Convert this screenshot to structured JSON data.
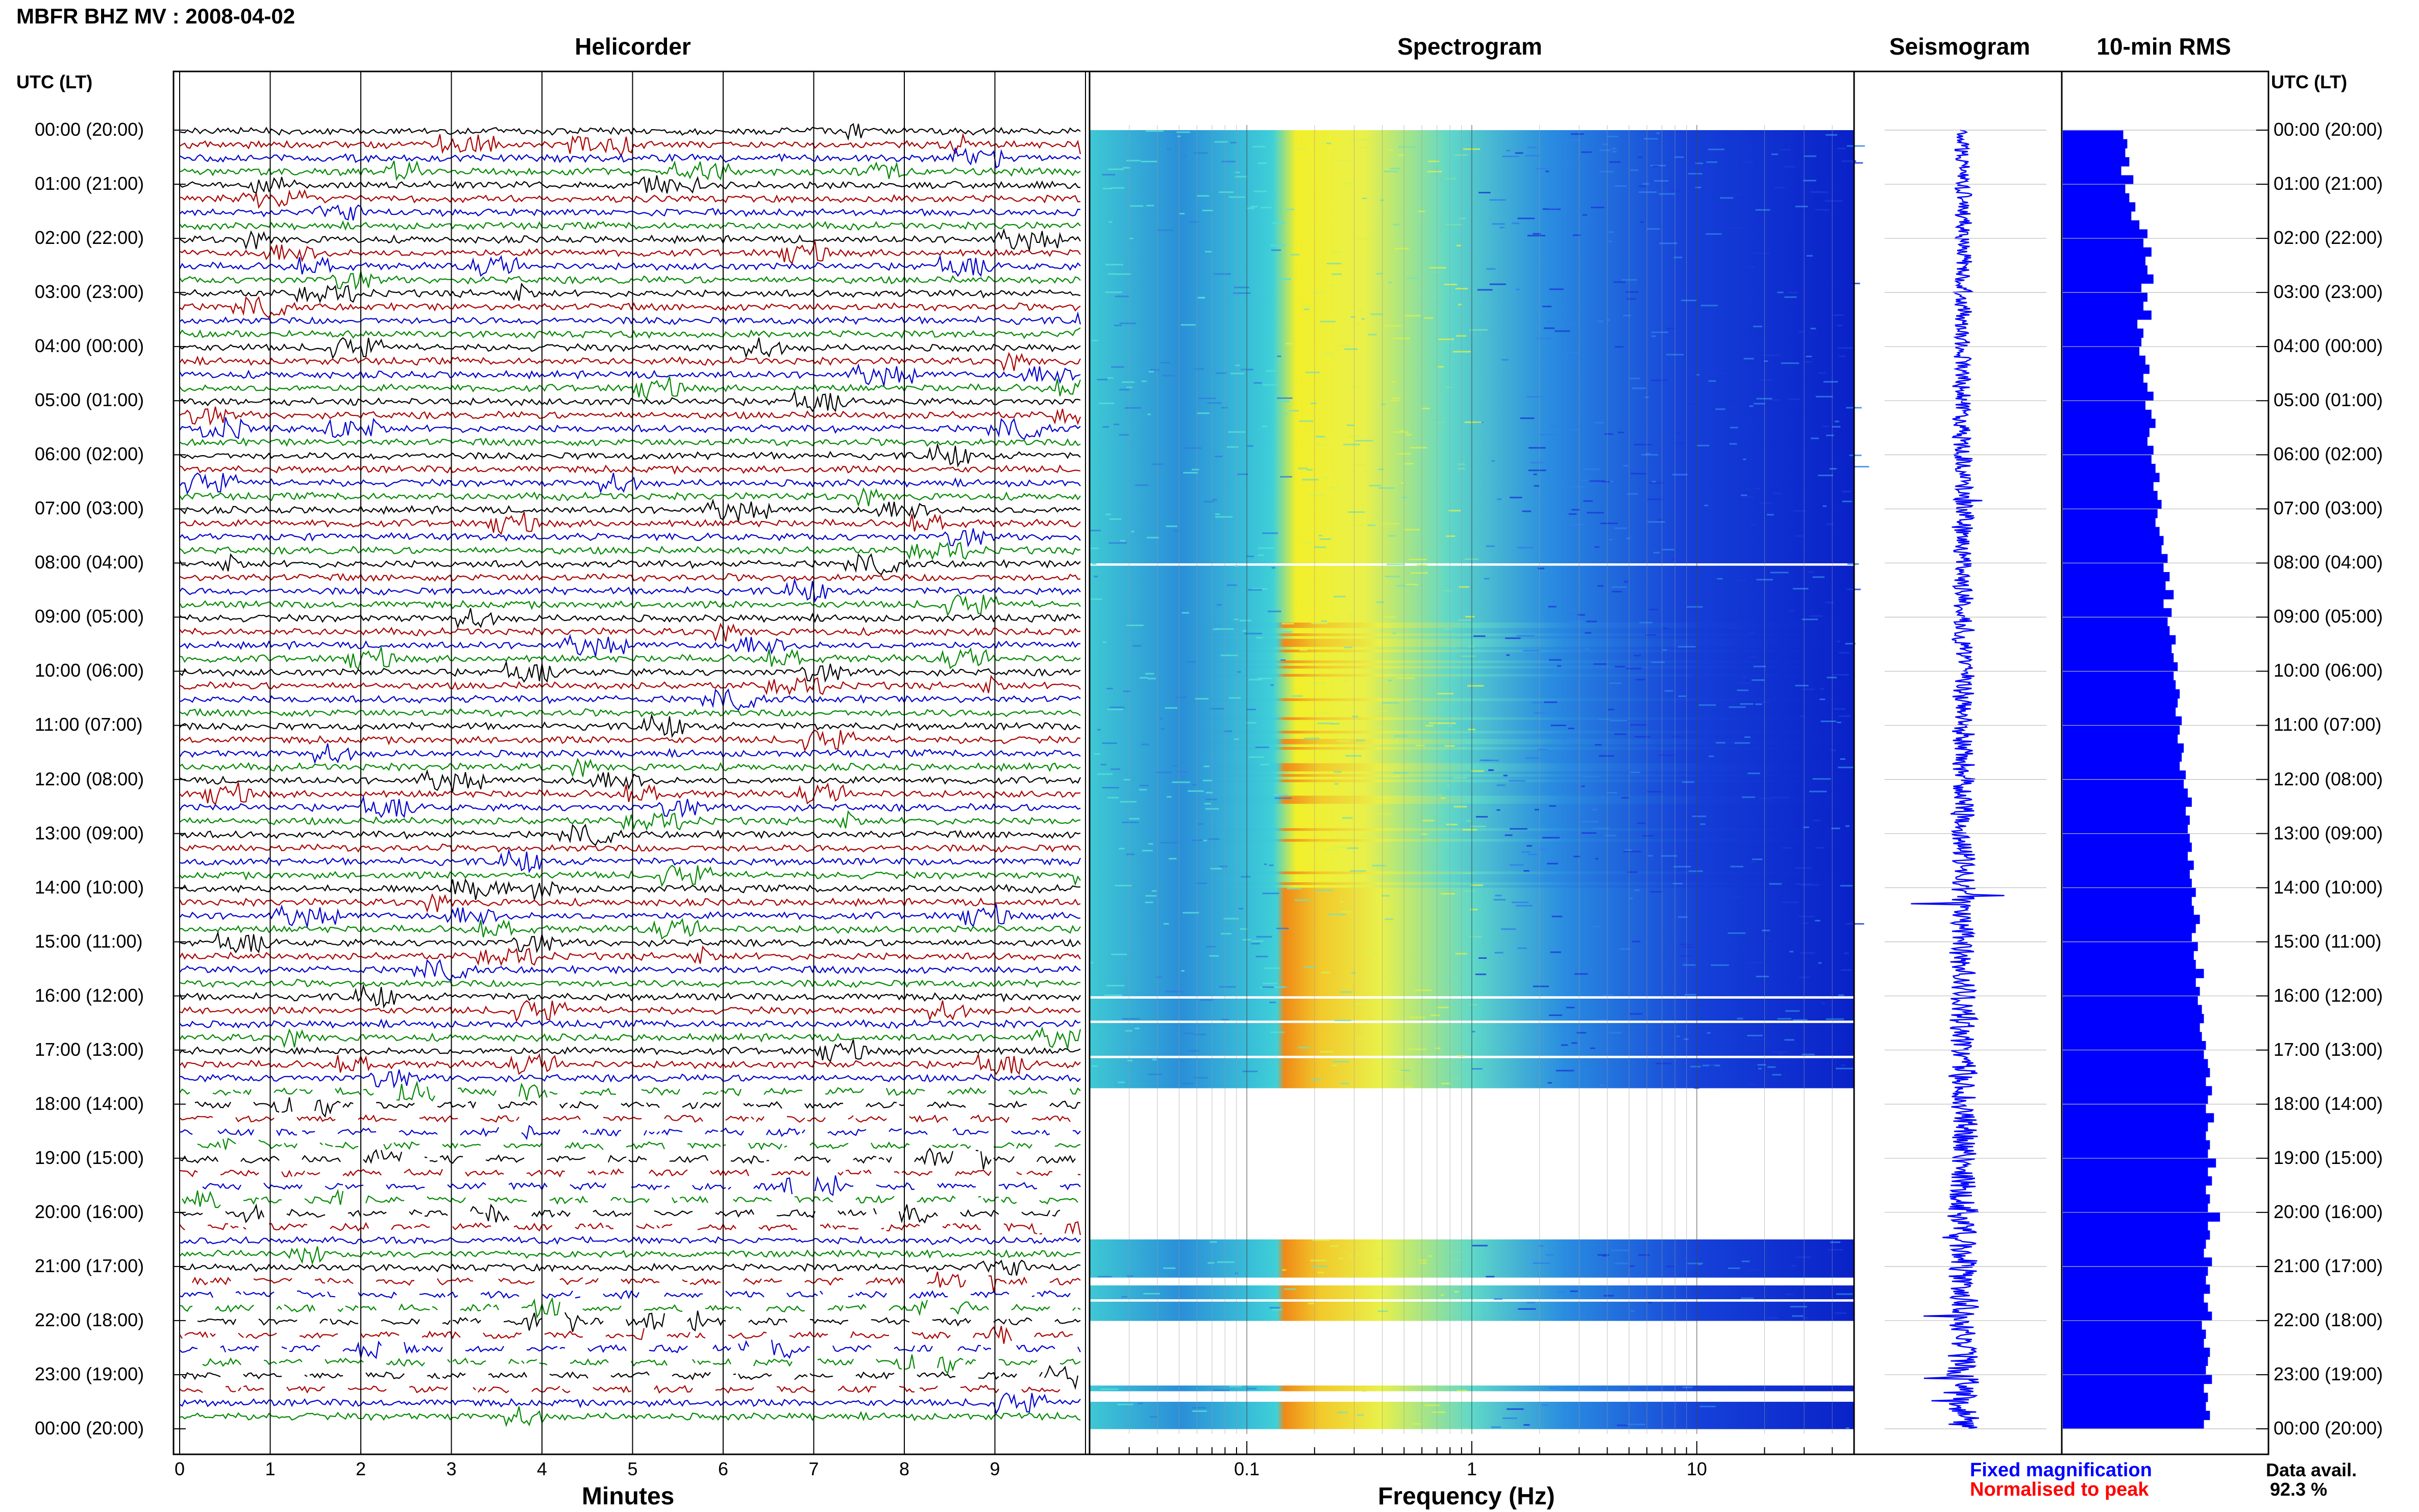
{
  "header": {
    "title": "MBFR BHZ MV : 2008-04-02",
    "utc_label_left": "UTC (LT)",
    "utc_label_right": "UTC (LT)"
  },
  "panels": {
    "helicorder": "Helicorder",
    "spectrogram": "Spectrogram",
    "seismogram": "Seismogram",
    "rms": "10-min RMS"
  },
  "axes": {
    "minutes_label": "Minutes",
    "frequency_label": "Frequency (Hz)",
    "minute_ticks": [
      "0",
      "1",
      "2",
      "3",
      "4",
      "5",
      "6",
      "7",
      "8",
      "9"
    ],
    "freq_ticks": [
      "0.1",
      "1",
      "10"
    ]
  },
  "time_labels": [
    "00:00 (20:00)",
    "01:00 (21:00)",
    "02:00 (22:00)",
    "03:00 (23:00)",
    "04:00 (00:00)",
    "05:00 (01:00)",
    "06:00 (02:00)",
    "07:00 (03:00)",
    "08:00 (04:00)",
    "09:00 (05:00)",
    "10:00 (06:00)",
    "11:00 (07:00)",
    "12:00 (08:00)",
    "13:00 (09:00)",
    "14:00 (10:00)",
    "15:00 (11:00)",
    "16:00 (12:00)",
    "17:00 (13:00)",
    "18:00 (14:00)",
    "19:00 (15:00)",
    "20:00 (16:00)",
    "21:00 (17:00)",
    "22:00 (18:00)",
    "23:00 (19:00)",
    "00:00 (20:00)"
  ],
  "legend": {
    "fixed": "Fixed magnification",
    "normalised": "Normalised to peak"
  },
  "availability": {
    "label": "Data avail.",
    "value": "92.3 %"
  },
  "colors": {
    "trace_colors": [
      "#000000",
      "#aa0000",
      "#0000cc",
      "#008800"
    ],
    "rms_bar": "#0000ff",
    "spectro_low": "#0a2bd6",
    "spectro_mid": "#3fd0d8",
    "spectro_high": "#f2ef2a",
    "spectro_peak": "#f08a18"
  },
  "chart_data": {
    "type": "heatmap",
    "date": "2008-04-02",
    "station": "MBFR BHZ MV",
    "hours_utc": [
      0,
      1,
      2,
      3,
      4,
      5,
      6,
      7,
      8,
      9,
      10,
      11,
      12,
      13,
      14,
      15,
      16,
      17,
      18,
      19,
      20,
      21,
      22,
      23,
      24
    ],
    "helicorder_x_range_minutes": [
      0,
      10
    ],
    "frequency_range_hz": [
      0.02,
      50
    ],
    "frequency_scale": "log",
    "spectrogram_gaps_utc_hours": [
      [
        7.95,
        8.0
      ],
      [
        16.0,
        16.05
      ],
      [
        16.45,
        16.5
      ],
      [
        17.1,
        17.15
      ],
      [
        17.7,
        20.5
      ],
      [
        21.2,
        21.35
      ],
      [
        21.6,
        21.65
      ],
      [
        22.0,
        23.2
      ],
      [
        23.3,
        23.5
      ]
    ],
    "rms_10min_relative": [
      0.3,
      0.32,
      0.31,
      0.33,
      0.29,
      0.35,
      0.31,
      0.33,
      0.36,
      0.34,
      0.38,
      0.42,
      0.4,
      0.44,
      0.41,
      0.42,
      0.45,
      0.39,
      0.42,
      0.4,
      0.44,
      0.37,
      0.4,
      0.39,
      0.38,
      0.41,
      0.43,
      0.4,
      0.42,
      0.45,
      0.41,
      0.44,
      0.46,
      0.43,
      0.42,
      0.45,
      0.44,
      0.46,
      0.48,
      0.45,
      0.47,
      0.49,
      0.47,
      0.46,
      0.48,
      0.5,
      0.49,
      0.52,
      0.5,
      0.53,
      0.51,
      0.55,
      0.5,
      0.54,
      0.52,
      0.53,
      0.56,
      0.54,
      0.55,
      0.57,
      0.55,
      0.56,
      0.58,
      0.57,
      0.56,
      0.59,
      0.58,
      0.57,
      0.6,
      0.59,
      0.58,
      0.61,
      0.6,
      0.62,
      0.64,
      0.61,
      0.63,
      0.62,
      0.63,
      0.64,
      0.62,
      0.65,
      0.63,
      0.64,
      0.66,
      0.64,
      0.65,
      0.68,
      0.66,
      0.64,
      0.67,
      0.65,
      0.66,
      0.7,
      0.66,
      0.68,
      0.67,
      0.69,
      0.7,
      0.68,
      0.69,
      0.71,
      0.7,
      0.72,
      0.73,
      0.71,
      0.74,
      0.72,
      0.71,
      0.75,
      0.72,
      0.71,
      0.73,
      0.72,
      0.76,
      0.72,
      0.74,
      0.71,
      0.73,
      0.72,
      0.78,
      0.72,
      0.73,
      0.71,
      0.7,
      0.74,
      0.72,
      0.71,
      0.73,
      0.7,
      0.72,
      0.74,
      0.69,
      0.71,
      0.7,
      0.73,
      0.72,
      0.71,
      0.74,
      0.7,
      0.72,
      0.71,
      0.73,
      0.7
    ]
  }
}
